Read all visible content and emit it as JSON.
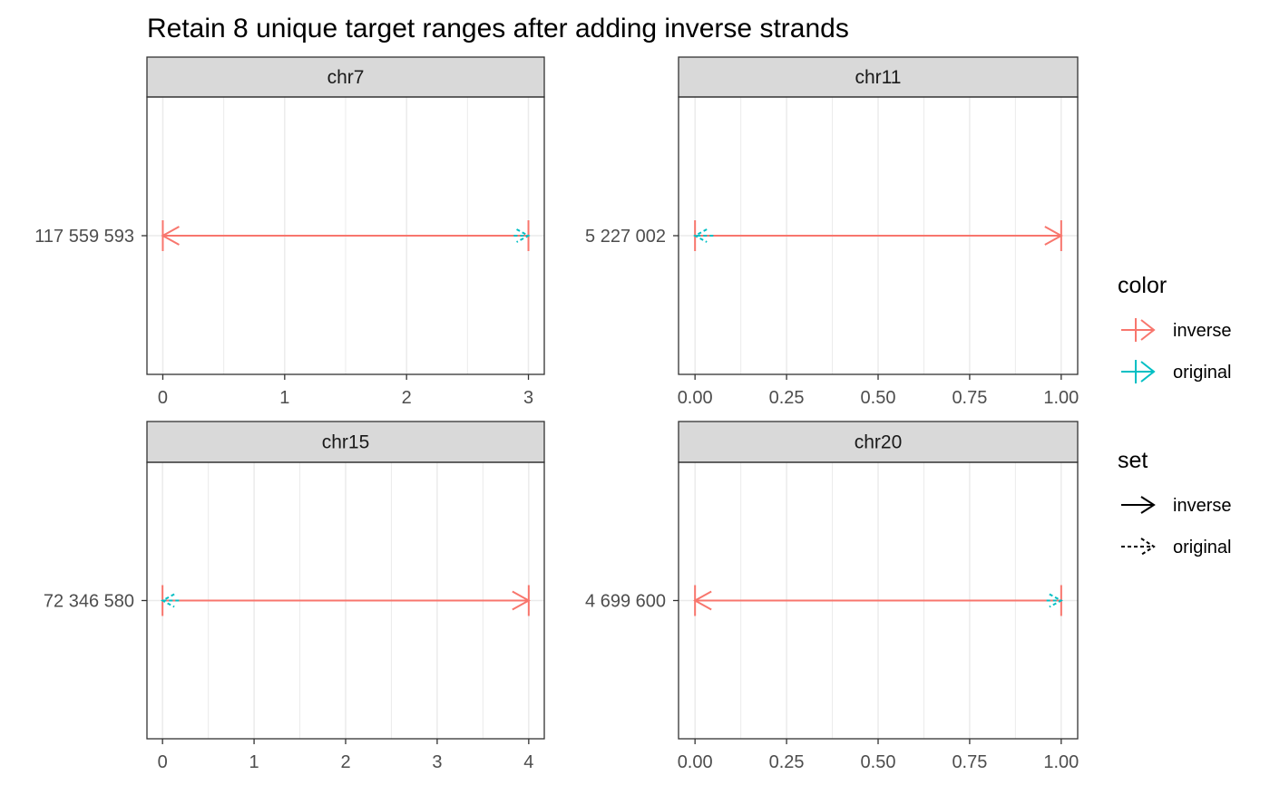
{
  "chart_data": {
    "type": "faceted-arrow-segments",
    "title": "Retain 8 unique target ranges after adding inverse strands",
    "xlabel": "",
    "ylabel": "",
    "grid": true,
    "legend_position": "right",
    "facets": [
      {
        "strip": "chr7",
        "y_tick": "117 559 593",
        "xlim": [
          -0.13,
          3.13
        ],
        "x_ticks": [
          "0",
          "1",
          "2",
          "3"
        ],
        "x_tick_values": [
          0,
          1,
          2,
          3
        ],
        "minor_ticks": [
          0.5,
          1.5,
          2.5
        ],
        "segments": [
          {
            "set": "inverse",
            "color": "inverse",
            "from": 3,
            "to": 0
          },
          {
            "set": "original",
            "color": "original",
            "from": 2.88,
            "to": 3
          }
        ]
      },
      {
        "strip": "chr11",
        "y_tick": "5 227 002",
        "xlim": [
          -0.045,
          1.045
        ],
        "x_ticks": [
          "0.00",
          "0.25",
          "0.50",
          "0.75",
          "1.00"
        ],
        "x_tick_values": [
          0,
          0.25,
          0.5,
          0.75,
          1
        ],
        "minor_ticks": [
          0.125,
          0.375,
          0.625,
          0.875
        ],
        "segments": [
          {
            "set": "inverse",
            "color": "inverse",
            "from": 0,
            "to": 1
          },
          {
            "set": "original",
            "color": "original",
            "from": 0.05,
            "to": 0
          }
        ]
      },
      {
        "strip": "chr15",
        "y_tick": "72 346 580",
        "xlim": [
          -0.17,
          4.17
        ],
        "x_ticks": [
          "0",
          "1",
          "2",
          "3",
          "4"
        ],
        "x_tick_values": [
          0,
          1,
          2,
          3,
          4
        ],
        "minor_ticks": [
          0.5,
          1.5,
          2.5,
          3.5
        ],
        "segments": [
          {
            "set": "inverse",
            "color": "inverse",
            "from": 0,
            "to": 4
          },
          {
            "set": "original",
            "color": "original",
            "from": 0.18,
            "to": 0
          }
        ]
      },
      {
        "strip": "chr20",
        "y_tick": "4 699 600",
        "xlim": [
          -0.045,
          1.045
        ],
        "x_ticks": [
          "0.00",
          "0.25",
          "0.50",
          "0.75",
          "1.00"
        ],
        "x_tick_values": [
          0,
          0.25,
          0.5,
          0.75,
          1
        ],
        "minor_ticks": [
          0.125,
          0.375,
          0.625,
          0.875
        ],
        "segments": [
          {
            "set": "inverse",
            "color": "inverse",
            "from": 1,
            "to": 0
          },
          {
            "set": "original",
            "color": "original",
            "from": 0.96,
            "to": 1
          }
        ]
      }
    ],
    "legend": {
      "color": {
        "title": "color",
        "entries": [
          {
            "label": "inverse",
            "color": "#F8766D"
          },
          {
            "label": "original",
            "color": "#00BFC4"
          }
        ]
      },
      "set": {
        "title": "set",
        "entries": [
          {
            "label": "inverse",
            "linetype": "solid"
          },
          {
            "label": "original",
            "linetype": "dashed"
          }
        ]
      }
    },
    "colors": {
      "inverse": "#F8766D",
      "original": "#00BFC4",
      "strip_fill": "#D9D9D9",
      "grid": "#EBEBEB",
      "panel_border": "#333333"
    }
  }
}
